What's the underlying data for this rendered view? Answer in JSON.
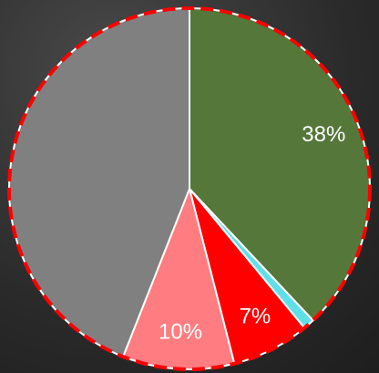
{
  "chart_data": {
    "type": "pie",
    "values": [
      38,
      1,
      7,
      10,
      44
    ],
    "value_labels": [
      "38%",
      null,
      "7%",
      "10%",
      null
    ],
    "colors": [
      "#55773a",
      "#5fe0e8",
      "#ff0000",
      "#ff7c80",
      "#808080"
    ]
  }
}
